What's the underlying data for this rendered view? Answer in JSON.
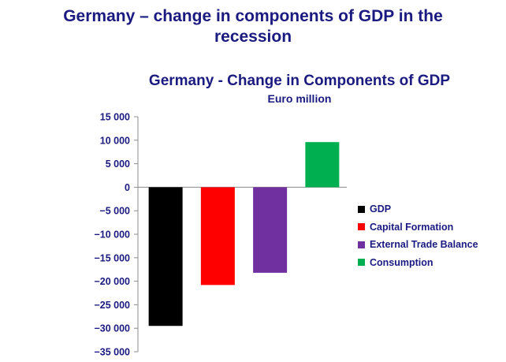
{
  "slide": {
    "title_line1": "Germany – change in components of GDP in the",
    "title_line2": "recession"
  },
  "chart_data": {
    "type": "bar",
    "title": "Germany - Change in Components of GDP",
    "subtitle": "Euro million",
    "categories": [
      "GDP",
      "Capital Formation",
      "External Trade Balance",
      "Consumption"
    ],
    "values": [
      -29500,
      -20800,
      -18200,
      9600
    ],
    "colors": [
      "#000000",
      "#ff0000",
      "#7030a0",
      "#00b050"
    ],
    "ylim": [
      -35000,
      15000
    ],
    "yticks": [
      15000,
      10000,
      5000,
      0,
      -5000,
      -10000,
      -15000,
      -20000,
      -25000,
      -30000,
      -35000
    ],
    "ytick_labels": [
      "15 000",
      "10 000",
      "5 000",
      "0",
      "−5 000",
      "−10 000",
      "−15 000",
      "−20 000",
      "−25 000",
      "−30 000",
      "−35 000"
    ],
    "legend_position": "right",
    "grid": false
  }
}
